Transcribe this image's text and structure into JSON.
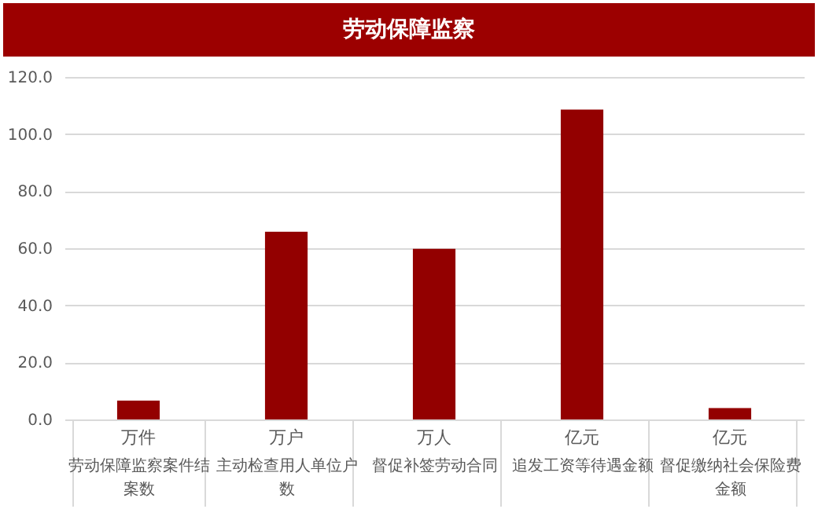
{
  "chart_data": {
    "type": "bar",
    "title": "劳动保障监察",
    "categories": [
      "劳动保障监察案件结案数",
      "主动检查用人单位户数",
      "督促补签劳动合同",
      "追发工资等待遇金额",
      "督促缴纳社会保险费金额"
    ],
    "annotations": [
      "万件",
      "万户",
      "万人",
      "亿元",
      "亿元"
    ],
    "values": [
      6.6,
      65.8,
      59.8,
      108.6,
      4.0
    ],
    "color": "#930000",
    "ylim": [
      0,
      120
    ],
    "yticks": [
      {
        "value": 0,
        "label": "0.0"
      },
      {
        "value": 20,
        "label": "20.0"
      },
      {
        "value": 40,
        "label": "40.0"
      },
      {
        "value": 60,
        "label": "60.0"
      },
      {
        "value": 80,
        "label": "80.0"
      },
      {
        "value": 100,
        "label": "100.0"
      },
      {
        "value": 120,
        "label": "120.0"
      }
    ],
    "grid": "y"
  }
}
